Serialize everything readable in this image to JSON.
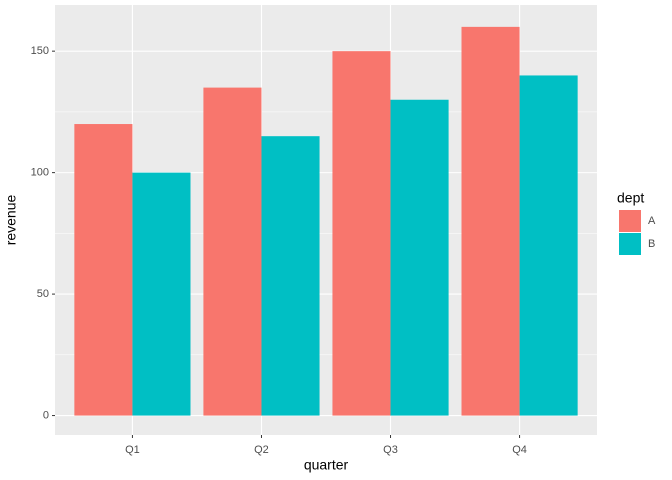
{
  "chart_data": {
    "type": "bar",
    "x_label": "quarter",
    "y_label": "revenue",
    "categories": [
      "Q1",
      "Q2",
      "Q3",
      "Q4"
    ],
    "series": [
      {
        "name": "A",
        "color": "#f8766d",
        "values": [
          120,
          135,
          150,
          160
        ]
      },
      {
        "name": "B",
        "color": "#00bfc4",
        "values": [
          100,
          115,
          130,
          140
        ]
      }
    ],
    "legend_title": "dept",
    "ylim": [
      -8,
      169
    ],
    "yticks": [
      0,
      50,
      100,
      150
    ],
    "minor_yticks": [
      25,
      75,
      125
    ],
    "grid": true,
    "legend": "right"
  }
}
